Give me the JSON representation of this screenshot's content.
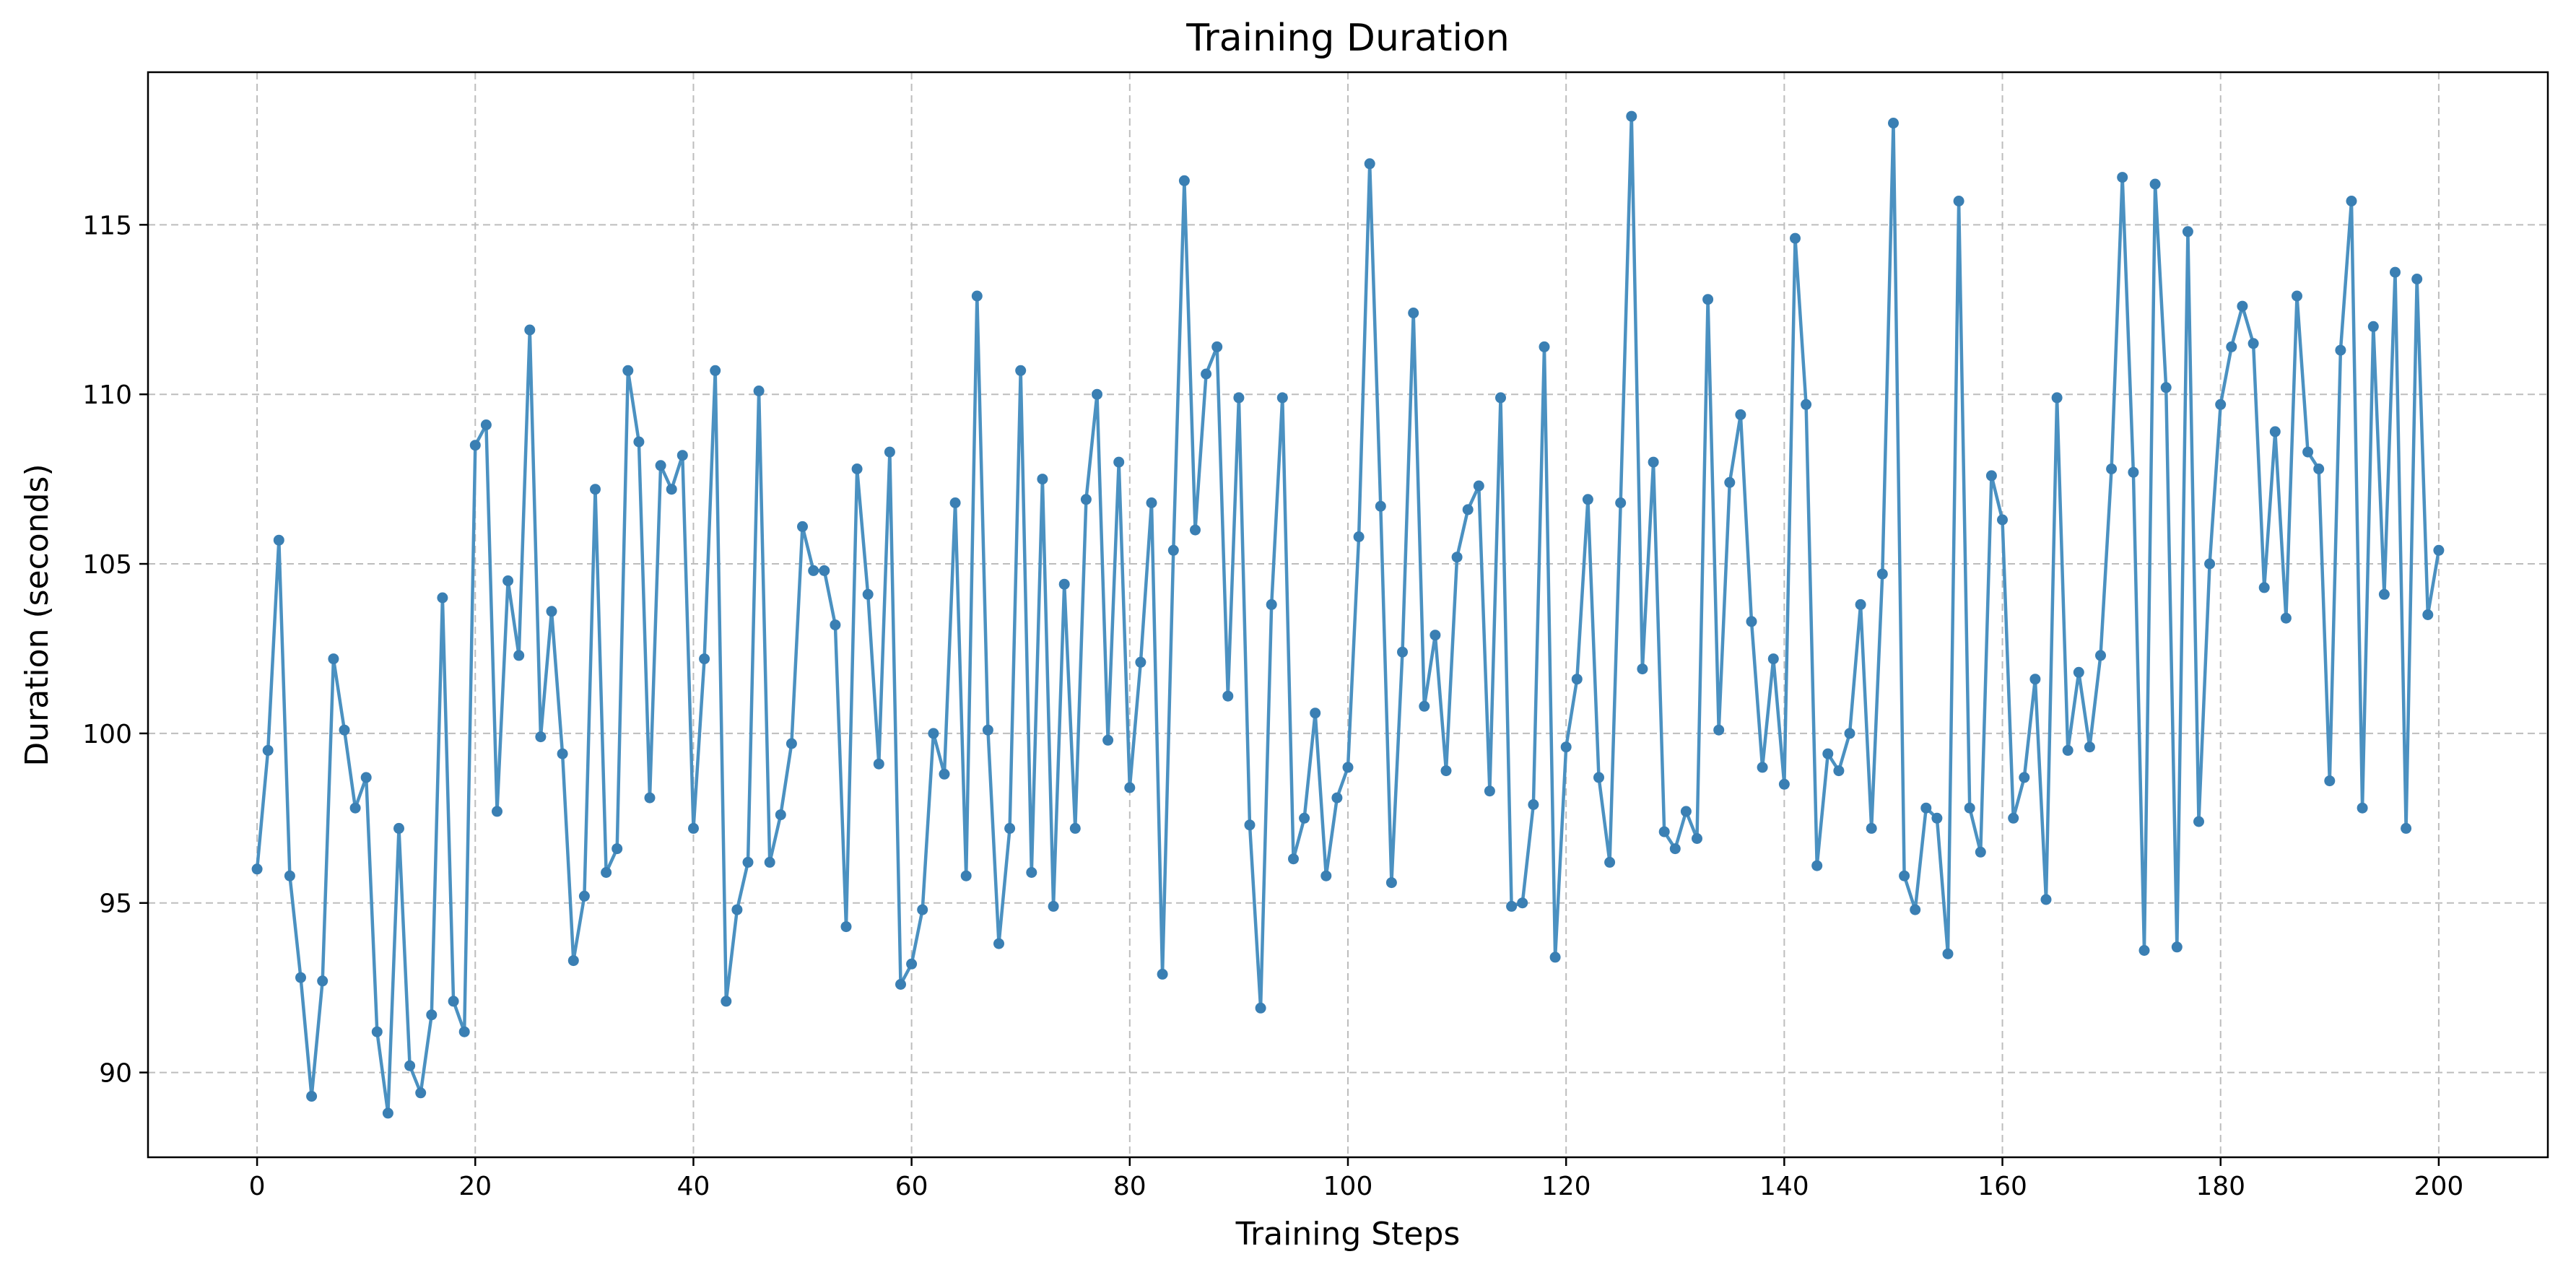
{
  "chart_data": {
    "type": "line",
    "title": "Training Duration",
    "xlabel": "Training Steps",
    "ylabel": "Duration (seconds)",
    "xlim": [
      -10,
      210
    ],
    "ylim": [
      87.5,
      119.5
    ],
    "x_ticks": [
      0,
      20,
      40,
      60,
      80,
      100,
      120,
      140,
      160,
      180,
      200
    ],
    "y_ticks": [
      90,
      95,
      100,
      105,
      110,
      115
    ],
    "grid": true,
    "grid_style": "dashed",
    "marker": "circle",
    "colors": {
      "line": "#4b91c1",
      "marker": "#3a7fb3",
      "grid": "#bdbdbd"
    },
    "series": [
      {
        "x_start": 0,
        "x_step": 1,
        "values": [
          96.0,
          99.5,
          105.7,
          95.8,
          92.8,
          89.3,
          92.7,
          102.2,
          100.1,
          97.8,
          98.7,
          91.2,
          88.8,
          97.2,
          90.2,
          89.4,
          91.7,
          104.0,
          92.1,
          91.2,
          108.5,
          109.1,
          97.7,
          104.5,
          102.3,
          111.9,
          99.9,
          103.6,
          99.4,
          93.3,
          95.2,
          107.2,
          95.9,
          96.6,
          110.7,
          108.6,
          98.1,
          107.9,
          107.2,
          108.2,
          97.2,
          102.2,
          110.7,
          92.1,
          94.8,
          96.2,
          110.1,
          96.2,
          97.6,
          99.7,
          106.1,
          104.8,
          104.8,
          103.2,
          94.3,
          107.8,
          104.1,
          99.1,
          108.3,
          92.6,
          93.2,
          94.8,
          100.0,
          98.8,
          106.8,
          95.8,
          112.9,
          100.1,
          93.8,
          97.2,
          110.7,
          95.9,
          107.5,
          94.9,
          104.4,
          97.2,
          106.9,
          110.0,
          99.8,
          108.0,
          98.4,
          102.1,
          106.8,
          92.9,
          105.4,
          116.3,
          106.0,
          110.6,
          111.4,
          101.1,
          109.9,
          97.3,
          91.9,
          103.8,
          109.9,
          96.3,
          97.5,
          100.6,
          95.8,
          98.1,
          99.0,
          105.8,
          116.8,
          106.7,
          95.6,
          102.4,
          112.4,
          100.8,
          102.9,
          98.9,
          105.2,
          106.6,
          107.3,
          98.3,
          109.9,
          94.9,
          95.0,
          97.9,
          111.4,
          93.4,
          99.6,
          101.6,
          106.9,
          98.7,
          96.2,
          106.8,
          118.2,
          101.9,
          108.0,
          97.1,
          96.6,
          97.7,
          96.9,
          112.8,
          100.1,
          107.4,
          109.4,
          103.3,
          99.0,
          102.2,
          98.5,
          114.6,
          109.7,
          96.1,
          99.4,
          98.9,
          100.0,
          103.8,
          97.2,
          104.7,
          118.0,
          95.8,
          94.8,
          97.8,
          97.5,
          93.5,
          115.7,
          97.8,
          96.5,
          107.6,
          106.3,
          97.5,
          98.7,
          101.6,
          95.1,
          109.9,
          99.5,
          101.8,
          99.6,
          102.3,
          107.8,
          116.4,
          107.7,
          93.6,
          116.2,
          110.2,
          93.7,
          114.8,
          97.4,
          105.0,
          109.7,
          111.4,
          112.6,
          111.5,
          104.3,
          108.9,
          103.4,
          112.9,
          108.3,
          107.8,
          98.6,
          111.3,
          115.7,
          97.8,
          112.0,
          104.1,
          113.6,
          97.2,
          113.4,
          103.5,
          105.4
        ]
      }
    ]
  }
}
